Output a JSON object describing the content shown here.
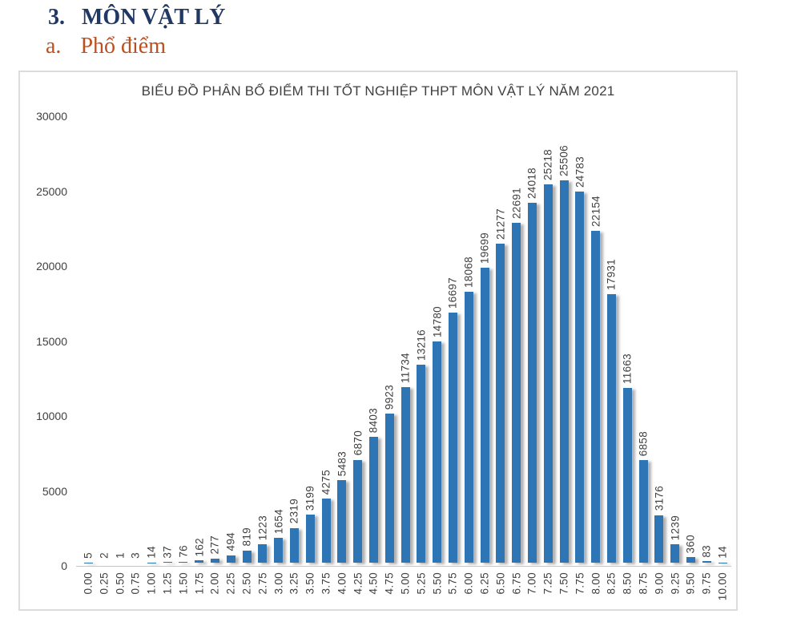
{
  "page": {
    "section_number": "3.",
    "section_title": "MÔN VẬT LÝ",
    "subsection_letter": "a.",
    "subsection_title": "Phổ điểm"
  },
  "chart_data": {
    "type": "bar",
    "title": "BIỂU ĐỒ PHÂN BỐ ĐIỂM THI TỐT NGHIỆP THPT MÔN VẬT LÝ NĂM 2021",
    "xlabel": "",
    "ylabel": "",
    "categories": [
      "0.00",
      "0.25",
      "0.50",
      "0.75",
      "1.00",
      "1.25",
      "1.50",
      "1.75",
      "2.00",
      "2.25",
      "2.50",
      "2.75",
      "3.00",
      "3.25",
      "3.50",
      "3.75",
      "4.00",
      "4.25",
      "4.50",
      "4.75",
      "5.00",
      "5.25",
      "5.50",
      "5.75",
      "6.00",
      "6.25",
      "6.50",
      "6.75",
      "7.00",
      "7.25",
      "7.50",
      "7.75",
      "8.00",
      "8.25",
      "8.50",
      "8.75",
      "9.00",
      "9.25",
      "9.50",
      "9.75",
      "10.00"
    ],
    "values": [
      5,
      2,
      1,
      3,
      14,
      37,
      76,
      162,
      277,
      494,
      819,
      1223,
      1654,
      2319,
      3199,
      4275,
      5483,
      6870,
      8403,
      9923,
      11734,
      13216,
      14780,
      16697,
      18068,
      19699,
      21277,
      22691,
      24018,
      25218,
      25506,
      24783,
      22154,
      17931,
      11663,
      6858,
      3176,
      1239,
      360,
      83,
      14
    ],
    "ylim": [
      0,
      30000
    ],
    "yticks": [
      0,
      5000,
      10000,
      15000,
      20000,
      25000,
      30000
    ],
    "grid": false,
    "legend": false,
    "data_labels": "rotated-90-above-bars",
    "bar_color": "#2E75B6",
    "label_color": "#404040"
  }
}
